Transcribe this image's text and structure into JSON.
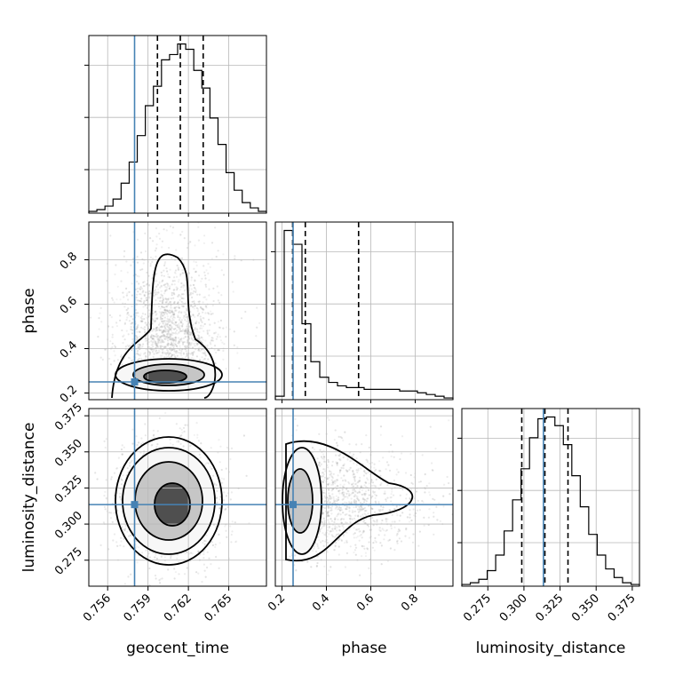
{
  "chart_data": {
    "type": "corner",
    "parameters": [
      "geocent_time",
      "phase",
      "luminosity_distance"
    ],
    "truths": {
      "geocent_time": 0.758,
      "phase": 0.25,
      "luminosity_distance": 0.3135
    },
    "ranges": {
      "geocent_time": [
        0.7546,
        0.7678
      ],
      "phase": [
        0.17,
        0.97
      ],
      "luminosity_distance": [
        0.257,
        0.38
      ]
    },
    "ticks": {
      "geocent_time": [
        "0.756",
        "0.759",
        "0.762",
        "0.765"
      ],
      "phase": [
        "0.2",
        "0.4",
        "0.6",
        "0.8"
      ],
      "luminosity_distance": [
        "0.275",
        "0.300",
        "0.325",
        "0.350",
        "0.375"
      ]
    },
    "quantiles": {
      "geocent_time": [
        0.7597,
        0.7614,
        0.7631
      ],
      "phase": [
        0.248,
        0.305,
        0.545
      ],
      "luminosity_distance": [
        0.2985,
        0.3145,
        0.3305
      ]
    },
    "histograms": {
      "geocent_time": [
        1,
        2,
        4,
        8,
        17,
        29,
        44,
        61,
        72,
        87,
        90,
        96,
        93,
        81,
        71,
        54,
        39,
        23,
        13,
        6,
        3,
        1
      ],
      "phase": [
        2,
        98,
        90,
        44,
        22,
        13,
        10,
        8,
        7,
        7,
        6,
        6,
        6,
        6,
        5,
        5,
        4,
        3,
        2,
        1
      ],
      "luminosity_distance": [
        1,
        2,
        4,
        9,
        18,
        32,
        50,
        68,
        86,
        97,
        98,
        93,
        82,
        64,
        46,
        30,
        18,
        10,
        5,
        2,
        1
      ]
    },
    "grid": true,
    "xlabel_rotation": 45
  }
}
